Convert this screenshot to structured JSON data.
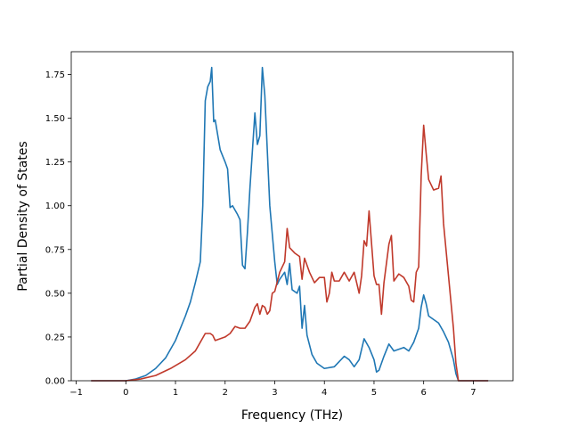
{
  "chart_data": {
    "type": "line",
    "title": "",
    "xlabel": "Frequency (THz)",
    "ylabel": "Partial Density of States",
    "xlim": [
      -1.1,
      7.8
    ],
    "ylim": [
      0.0,
      1.88
    ],
    "x_ticks": [
      -1,
      0,
      1,
      2,
      3,
      4,
      5,
      6,
      7
    ],
    "x_tick_labels": [
      "−1",
      "0",
      "1",
      "2",
      "3",
      "4",
      "5",
      "6",
      "7"
    ],
    "y_ticks": [
      0.0,
      0.25,
      0.5,
      0.75,
      1.0,
      1.25,
      1.5,
      1.75
    ],
    "y_tick_labels": [
      "0.00",
      "0.25",
      "0.50",
      "0.75",
      "1.00",
      "1.25",
      "1.50",
      "1.75"
    ],
    "grid": false,
    "legend": "none",
    "series": [
      {
        "color": "#1f77b4",
        "points": [
          [
            -0.7,
            0.0
          ],
          [
            0.0,
            0.0
          ],
          [
            0.2,
            0.01
          ],
          [
            0.4,
            0.03
          ],
          [
            0.6,
            0.07
          ],
          [
            0.8,
            0.13
          ],
          [
            1.0,
            0.23
          ],
          [
            1.2,
            0.37
          ],
          [
            1.3,
            0.45
          ],
          [
            1.4,
            0.56
          ],
          [
            1.5,
            0.68
          ],
          [
            1.55,
            1.0
          ],
          [
            1.6,
            1.6
          ],
          [
            1.65,
            1.68
          ],
          [
            1.7,
            1.71
          ],
          [
            1.73,
            1.79
          ],
          [
            1.77,
            1.48
          ],
          [
            1.8,
            1.49
          ],
          [
            1.9,
            1.32
          ],
          [
            2.0,
            1.25
          ],
          [
            2.05,
            1.21
          ],
          [
            2.1,
            0.99
          ],
          [
            2.15,
            1.0
          ],
          [
            2.25,
            0.95
          ],
          [
            2.3,
            0.92
          ],
          [
            2.35,
            0.66
          ],
          [
            2.4,
            0.64
          ],
          [
            2.45,
            0.85
          ],
          [
            2.5,
            1.1
          ],
          [
            2.6,
            1.53
          ],
          [
            2.65,
            1.35
          ],
          [
            2.7,
            1.4
          ],
          [
            2.75,
            1.79
          ],
          [
            2.8,
            1.63
          ],
          [
            2.9,
            1.0
          ],
          [
            3.0,
            0.68
          ],
          [
            3.05,
            0.55
          ],
          [
            3.1,
            0.58
          ],
          [
            3.2,
            0.62
          ],
          [
            3.25,
            0.55
          ],
          [
            3.3,
            0.67
          ],
          [
            3.35,
            0.52
          ],
          [
            3.45,
            0.5
          ],
          [
            3.5,
            0.54
          ],
          [
            3.55,
            0.3
          ],
          [
            3.6,
            0.43
          ],
          [
            3.65,
            0.26
          ],
          [
            3.75,
            0.15
          ],
          [
            3.85,
            0.1
          ],
          [
            4.0,
            0.07
          ],
          [
            4.2,
            0.08
          ],
          [
            4.4,
            0.14
          ],
          [
            4.5,
            0.12
          ],
          [
            4.6,
            0.08
          ],
          [
            4.7,
            0.12
          ],
          [
            4.8,
            0.24
          ],
          [
            4.9,
            0.19
          ],
          [
            5.0,
            0.12
          ],
          [
            5.05,
            0.05
          ],
          [
            5.1,
            0.06
          ],
          [
            5.2,
            0.14
          ],
          [
            5.3,
            0.21
          ],
          [
            5.4,
            0.17
          ],
          [
            5.6,
            0.19
          ],
          [
            5.7,
            0.17
          ],
          [
            5.8,
            0.22
          ],
          [
            5.9,
            0.3
          ],
          [
            5.95,
            0.42
          ],
          [
            6.0,
            0.49
          ],
          [
            6.05,
            0.44
          ],
          [
            6.1,
            0.37
          ],
          [
            6.3,
            0.33
          ],
          [
            6.4,
            0.28
          ],
          [
            6.5,
            0.22
          ],
          [
            6.6,
            0.12
          ],
          [
            6.65,
            0.04
          ],
          [
            6.7,
            0.0
          ],
          [
            7.3,
            0.0
          ]
        ]
      },
      {
        "color": "#c0392b",
        "points": [
          [
            -0.7,
            0.0
          ],
          [
            0.0,
            0.0
          ],
          [
            0.3,
            0.01
          ],
          [
            0.6,
            0.03
          ],
          [
            0.9,
            0.07
          ],
          [
            1.2,
            0.12
          ],
          [
            1.4,
            0.17
          ],
          [
            1.5,
            0.22
          ],
          [
            1.6,
            0.27
          ],
          [
            1.7,
            0.27
          ],
          [
            1.75,
            0.26
          ],
          [
            1.8,
            0.23
          ],
          [
            1.9,
            0.24
          ],
          [
            2.0,
            0.25
          ],
          [
            2.1,
            0.27
          ],
          [
            2.2,
            0.31
          ],
          [
            2.3,
            0.3
          ],
          [
            2.4,
            0.3
          ],
          [
            2.5,
            0.34
          ],
          [
            2.6,
            0.42
          ],
          [
            2.65,
            0.44
          ],
          [
            2.7,
            0.38
          ],
          [
            2.75,
            0.43
          ],
          [
            2.8,
            0.42
          ],
          [
            2.85,
            0.38
          ],
          [
            2.9,
            0.4
          ],
          [
            2.95,
            0.5
          ],
          [
            3.0,
            0.51
          ],
          [
            3.1,
            0.62
          ],
          [
            3.2,
            0.68
          ],
          [
            3.25,
            0.87
          ],
          [
            3.3,
            0.76
          ],
          [
            3.4,
            0.73
          ],
          [
            3.5,
            0.71
          ],
          [
            3.55,
            0.58
          ],
          [
            3.6,
            0.7
          ],
          [
            3.7,
            0.62
          ],
          [
            3.8,
            0.56
          ],
          [
            3.9,
            0.59
          ],
          [
            4.0,
            0.59
          ],
          [
            4.05,
            0.45
          ],
          [
            4.1,
            0.5
          ],
          [
            4.15,
            0.62
          ],
          [
            4.2,
            0.57
          ],
          [
            4.3,
            0.57
          ],
          [
            4.4,
            0.62
          ],
          [
            4.5,
            0.57
          ],
          [
            4.6,
            0.62
          ],
          [
            4.7,
            0.5
          ],
          [
            4.75,
            0.6
          ],
          [
            4.8,
            0.8
          ],
          [
            4.85,
            0.77
          ],
          [
            4.9,
            0.97
          ],
          [
            5.0,
            0.6
          ],
          [
            5.05,
            0.55
          ],
          [
            5.1,
            0.55
          ],
          [
            5.15,
            0.38
          ],
          [
            5.2,
            0.56
          ],
          [
            5.3,
            0.78
          ],
          [
            5.35,
            0.83
          ],
          [
            5.4,
            0.57
          ],
          [
            5.45,
            0.59
          ],
          [
            5.5,
            0.61
          ],
          [
            5.6,
            0.59
          ],
          [
            5.7,
            0.54
          ],
          [
            5.75,
            0.46
          ],
          [
            5.8,
            0.45
          ],
          [
            5.85,
            0.62
          ],
          [
            5.9,
            0.65
          ],
          [
            5.95,
            1.17
          ],
          [
            6.0,
            1.46
          ],
          [
            6.05,
            1.3
          ],
          [
            6.1,
            1.15
          ],
          [
            6.2,
            1.09
          ],
          [
            6.3,
            1.1
          ],
          [
            6.35,
            1.17
          ],
          [
            6.4,
            0.9
          ],
          [
            6.5,
            0.6
          ],
          [
            6.6,
            0.3
          ],
          [
            6.65,
            0.1
          ],
          [
            6.7,
            0.0
          ],
          [
            7.3,
            0.0
          ]
        ]
      }
    ]
  }
}
